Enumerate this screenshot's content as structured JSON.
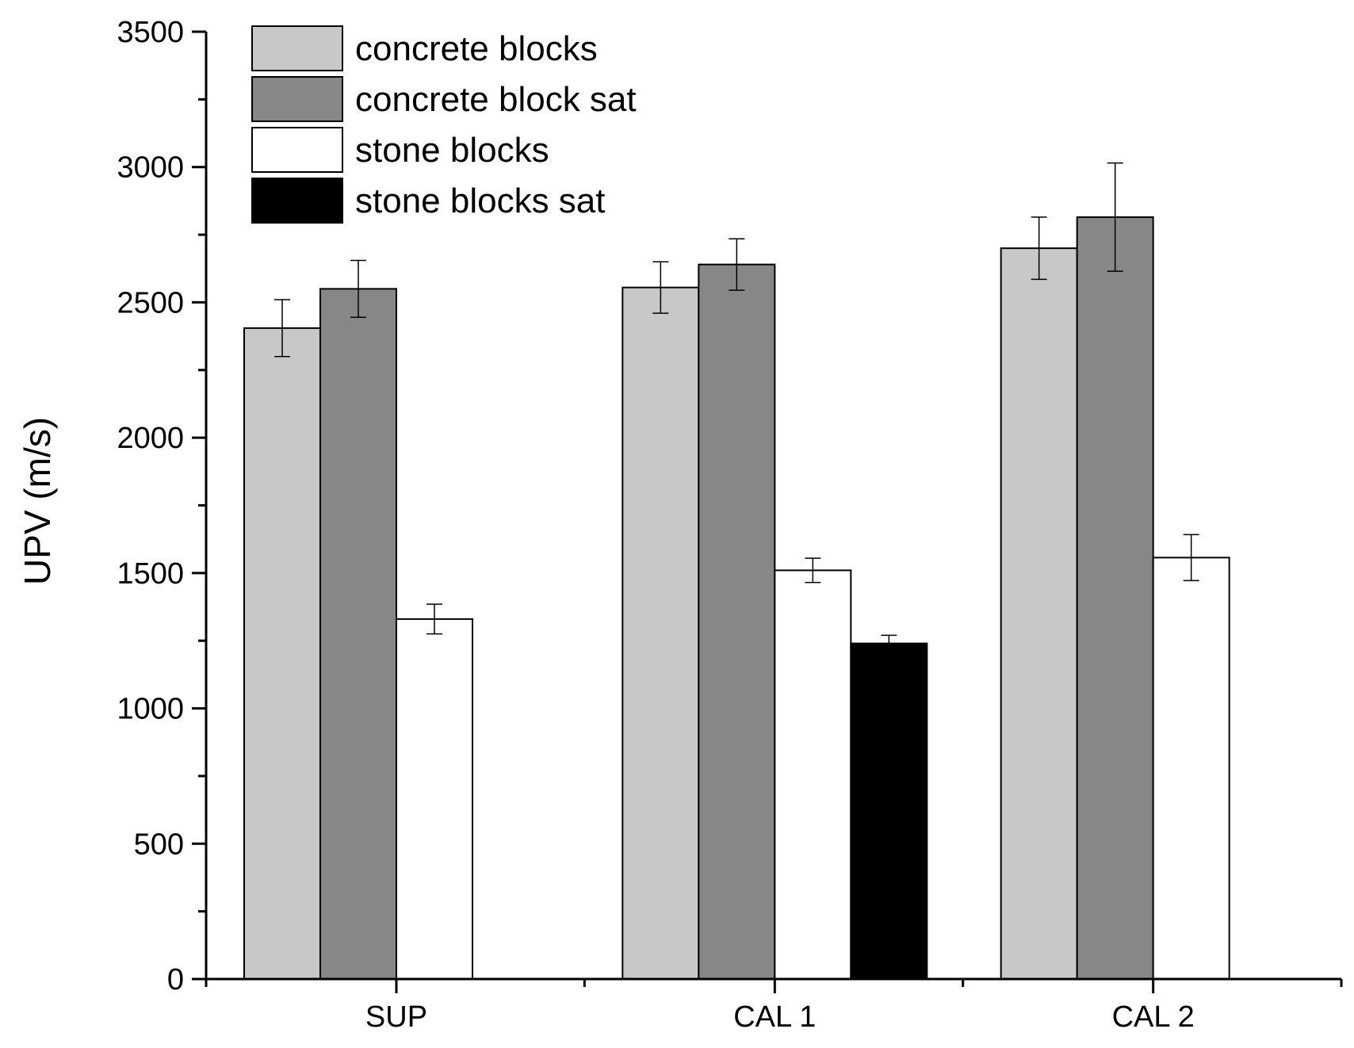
{
  "chart_data": {
    "type": "bar",
    "title": "",
    "xlabel": "",
    "ylabel": "UPV (m/s)",
    "ylim": [
      0,
      3500
    ],
    "yticks": [
      0,
      500,
      1000,
      1500,
      2000,
      2500,
      3000,
      3500
    ],
    "grid": false,
    "legend_position": "top-left",
    "categories": [
      "SUP",
      "CAL 1",
      "CAL 2"
    ],
    "series": [
      {
        "name": "concrete blocks",
        "color": "#c8c8c8",
        "values": [
          2405,
          2555,
          2700
        ],
        "errors": [
          105,
          95,
          115
        ]
      },
      {
        "name": "concrete block sat",
        "color": "#878787",
        "values": [
          2550,
          2640,
          2815
        ],
        "errors": [
          105,
          95,
          200
        ]
      },
      {
        "name": "stone blocks",
        "color": "#ffffff",
        "values": [
          1330,
          1510,
          1557
        ],
        "errors": [
          55,
          45,
          85
        ]
      },
      {
        "name": "stone blocks sat",
        "color": "#000000",
        "values": [
          null,
          1240,
          null
        ],
        "errors": [
          null,
          30,
          null
        ]
      }
    ]
  }
}
